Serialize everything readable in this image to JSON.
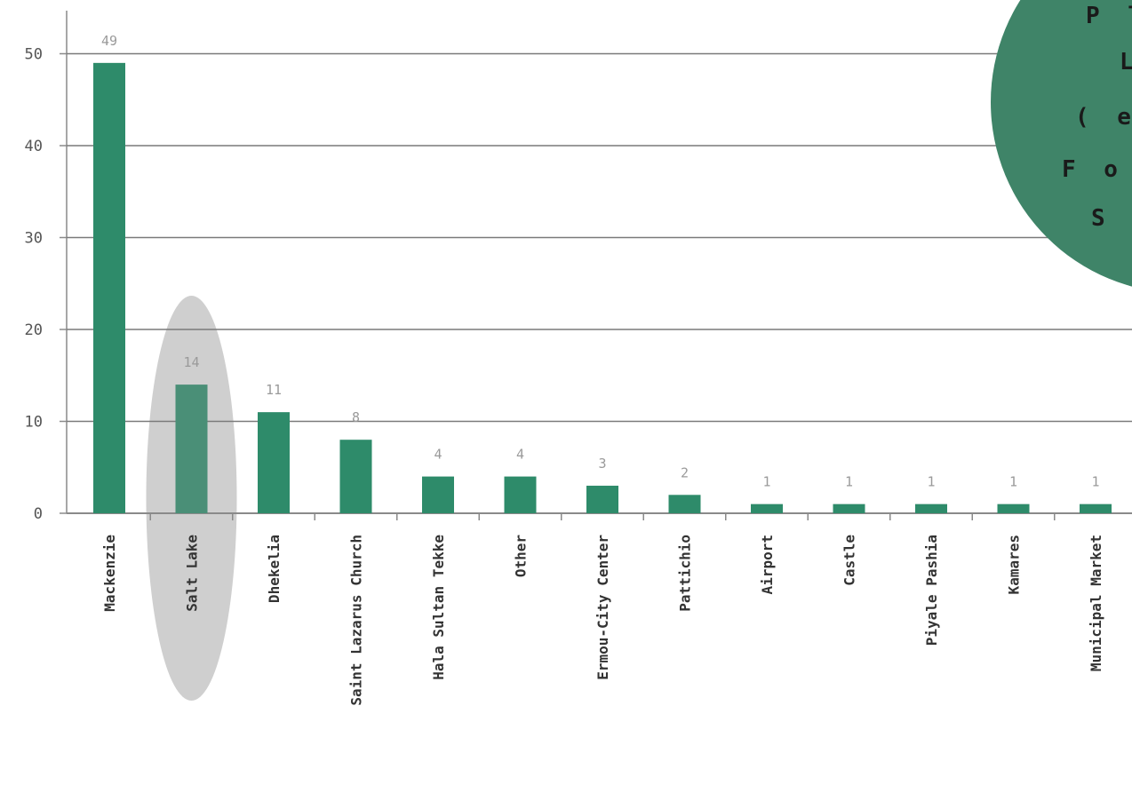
{
  "chart_data": {
    "type": "bar",
    "title": "",
    "xlabel": "",
    "ylabel": "",
    "ylim": [
      0,
      53
    ],
    "yticks": [
      0,
      10,
      20,
      30,
      40,
      50
    ],
    "grid": true,
    "categories": [
      "Mackenzie",
      "Salt Lake",
      "Dhekelia",
      "Saint Lazarus Church",
      "Hala Sultan Tekke",
      "Other",
      "Ermou-City Center",
      "Pattichio",
      "Airport",
      "Castle",
      "Piyale Pashia",
      "Kamares",
      "Municipal Market"
    ],
    "values": [
      49,
      14,
      11,
      8,
      4,
      4,
      3,
      2,
      1,
      1,
      1,
      1,
      1
    ],
    "highlighted": "Salt Lake",
    "colors": {
      "bar": "#2e8b6a",
      "highlight_bar": "#4a8f77",
      "highlight_oval": "#cfcfcf",
      "circle": "#3f8468",
      "grid": "#7a7a7a"
    }
  },
  "overlay_circle": {
    "text_lines": [
      "P l",
      "L",
      "( e",
      "F o i",
      "S e"
    ]
  }
}
